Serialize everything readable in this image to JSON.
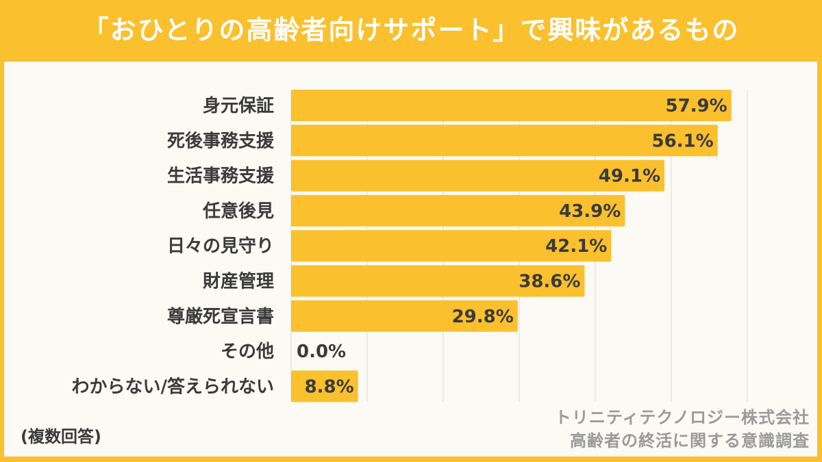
{
  "title": "「おひとりの高齢者向けサポート」で興味があるもの",
  "note": "(複数回答)",
  "source": {
    "line1": "トリニティテクノロジー株式会社",
    "line2": "高齢者の終活に関する意識調査"
  },
  "colors": {
    "bar": "#FBC02D",
    "frame": "#FBC02D",
    "background": "#FBFAF4",
    "grid": "#d9d9d9"
  },
  "chart_data": {
    "type": "bar",
    "orientation": "horizontal",
    "categories": [
      "身元保証",
      "死後事務支援",
      "生活事務支援",
      "任意後見",
      "日々の見守り",
      "財産管理",
      "尊厳死宣言書",
      "その他",
      "わからない/答えられない"
    ],
    "values": [
      57.9,
      56.1,
      49.1,
      43.9,
      42.1,
      38.6,
      29.8,
      0.0,
      8.8
    ],
    "data_labels": [
      "57.9%",
      "56.1%",
      "49.1%",
      "43.9%",
      "42.1%",
      "38.6%",
      "29.8%",
      "0.0%",
      "8.8%"
    ],
    "xlim": [
      0,
      60
    ],
    "grid": true,
    "unit": "%"
  }
}
